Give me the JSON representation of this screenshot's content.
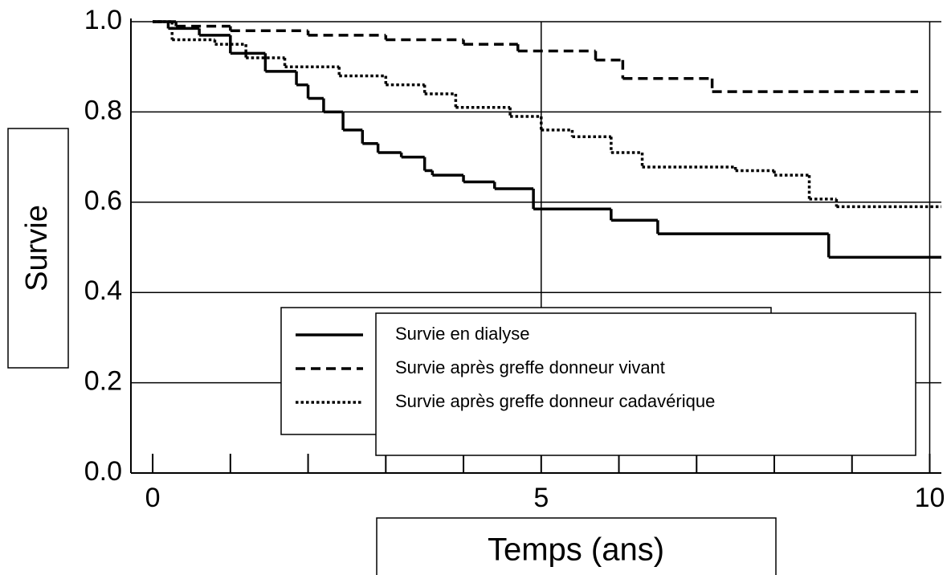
{
  "chart_data": {
    "type": "step",
    "xlabel": "Temps (ans)",
    "ylabel": "Survie",
    "xlim": [
      -0.28,
      10.15
    ],
    "ylim": [
      0,
      1
    ],
    "xticks": [
      0,
      5,
      10
    ],
    "x_minor_ticks": [
      0,
      1,
      2,
      3,
      4,
      5,
      6,
      7,
      8,
      9,
      10
    ],
    "yticks": [
      {
        "value": 0,
        "label": "0.0"
      },
      0.2,
      0.4,
      0.6,
      0.8,
      {
        "value": 1,
        "label": "1.0"
      }
    ],
    "grid": true,
    "legend": "lower-right",
    "series": [
      {
        "name": "Survie en dialyse",
        "color": "#000000",
        "dash": "solid",
        "x": [
          0,
          0.2,
          0.6,
          1.0,
          1.45,
          1.85,
          2.0,
          2.2,
          2.45,
          2.7,
          2.9,
          3.2,
          3.5,
          3.6,
          4.0,
          4.4,
          4.9,
          5.9,
          6.5,
          8.7,
          10.15
        ],
        "values": [
          1.0,
          0.985,
          0.97,
          0.93,
          0.89,
          0.86,
          0.83,
          0.8,
          0.76,
          0.73,
          0.71,
          0.7,
          0.67,
          0.66,
          0.645,
          0.63,
          0.585,
          0.56,
          0.53,
          0.478,
          0.478
        ]
      },
      {
        "name": "Survie après greffe donneur vivant",
        "color": "#000000",
        "dash": "dashed",
        "x": [
          0,
          0.3,
          1.0,
          2.0,
          3.0,
          4.0,
          4.7,
          5.7,
          6.05,
          7.2,
          9.85
        ],
        "values": [
          1.0,
          0.99,
          0.98,
          0.97,
          0.96,
          0.95,
          0.935,
          0.915,
          0.874,
          0.845,
          0.845
        ]
      },
      {
        "name": "Survie après greffe donneur cadavérique",
        "color": "#000000",
        "dash": "dotted",
        "x": [
          0,
          0.25,
          0.8,
          1.2,
          1.7,
          2.4,
          3.0,
          3.5,
          3.9,
          4.6,
          5.0,
          5.4,
          5.9,
          6.3,
          7.5,
          8.0,
          8.45,
          8.8,
          10.15
        ],
        "values": [
          1.0,
          0.96,
          0.95,
          0.92,
          0.9,
          0.88,
          0.86,
          0.84,
          0.81,
          0.79,
          0.76,
          0.745,
          0.71,
          0.678,
          0.67,
          0.66,
          0.607,
          0.59,
          0.59
        ]
      }
    ]
  }
}
